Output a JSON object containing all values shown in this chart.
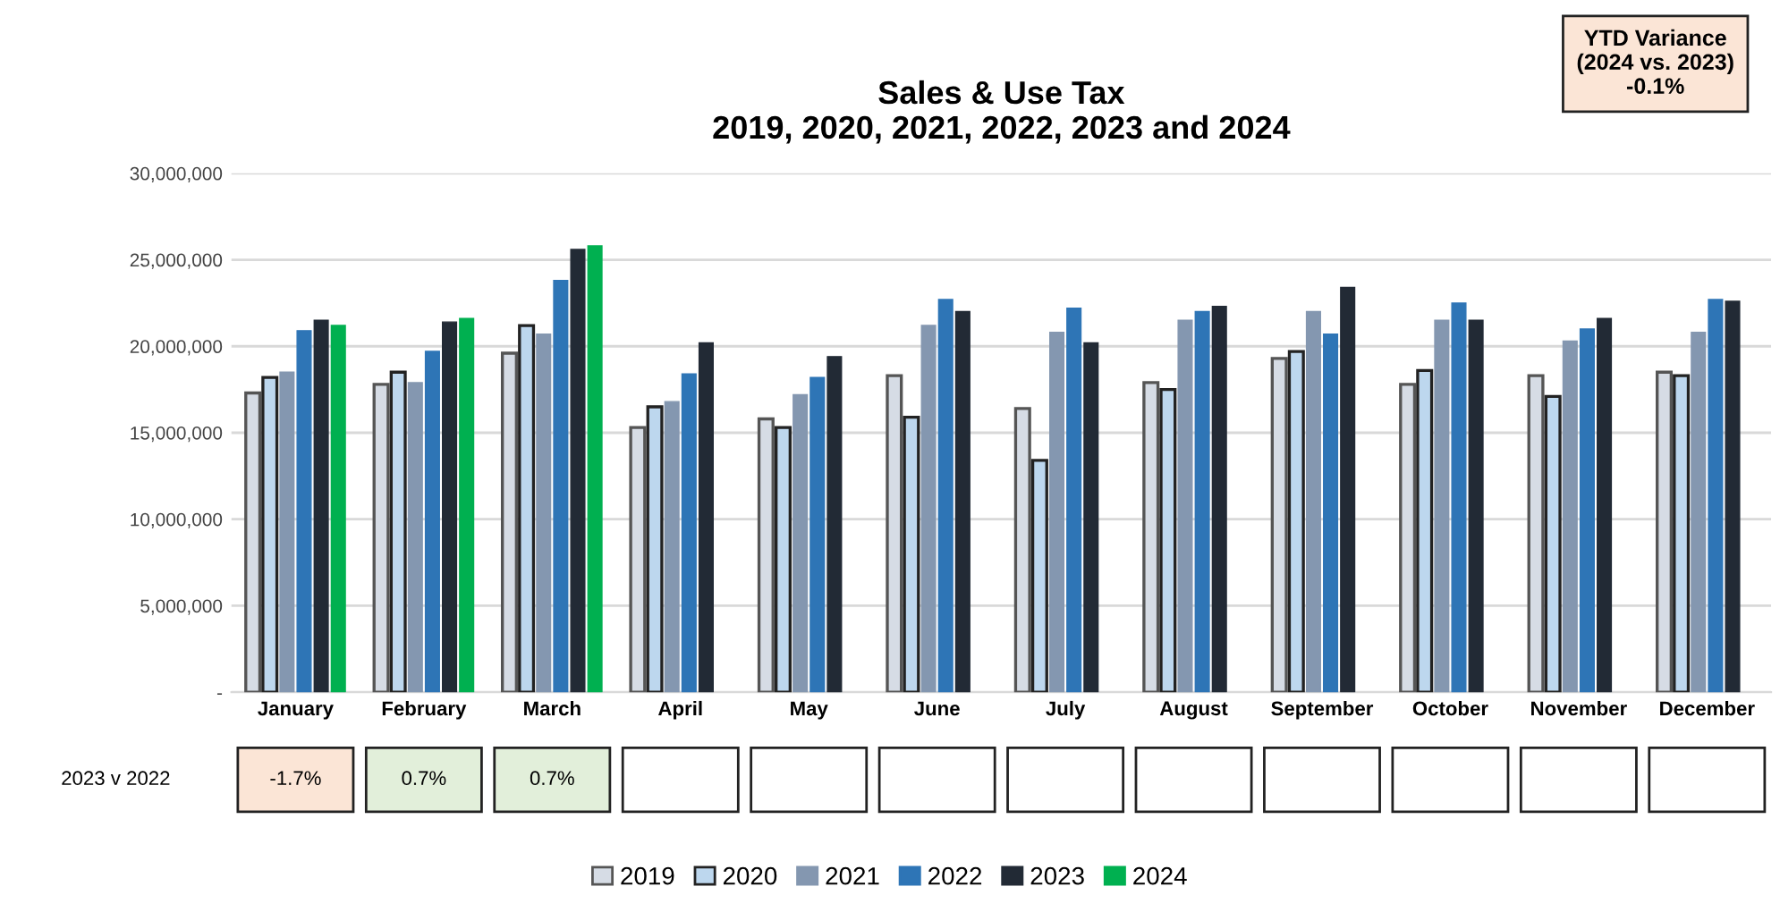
{
  "chart_data": {
    "type": "bar",
    "title": "Sales & Use Tax\n2019, 2020, 2021, 2022, 2023 and 2024",
    "categories": [
      "January",
      "February",
      "March",
      "April",
      "May",
      "June",
      "July",
      "August",
      "September",
      "October",
      "November",
      "December"
    ],
    "series": [
      {
        "name": "2019",
        "color": "#d6dce5",
        "values": [
          17300000,
          17800000,
          19600000,
          15300000,
          15800000,
          18300000,
          16400000,
          17900000,
          19300000,
          17800000,
          18300000,
          18500000
        ]
      },
      {
        "name": "2020",
        "color": "#bdd7ee",
        "values": [
          18200000,
          18500000,
          21200000,
          16500000,
          15300000,
          15900000,
          13400000,
          17500000,
          19700000,
          18600000,
          17100000,
          18300000
        ]
      },
      {
        "name": "2021",
        "color": "#8497b0",
        "values": [
          18500000,
          17900000,
          20700000,
          16800000,
          17200000,
          21200000,
          20800000,
          21500000,
          22000000,
          21500000,
          20300000,
          20800000
        ]
      },
      {
        "name": "2022",
        "color": "#2e75b6",
        "values": [
          20900000,
          19700000,
          23800000,
          18400000,
          18200000,
          22700000,
          22200000,
          22000000,
          20700000,
          22500000,
          21000000,
          22700000
        ]
      },
      {
        "name": "2023",
        "color": "#222a35",
        "values": [
          21500000,
          21400000,
          25600000,
          20200000,
          19400000,
          22000000,
          20200000,
          22300000,
          23400000,
          21500000,
          21600000,
          22600000
        ]
      },
      {
        "name": "2024",
        "color": "#00b050",
        "values": [
          21200000,
          21600000,
          25800000,
          null,
          null,
          null,
          null,
          null,
          null,
          null,
          null,
          null
        ]
      }
    ],
    "ylim": [
      0,
      30000000
    ],
    "yticks": [
      {
        "value": 0,
        "label": "-"
      },
      {
        "value": 5000000,
        "label": "5,000,000"
      },
      {
        "value": 10000000,
        "label": "10,000,000"
      },
      {
        "value": 15000000,
        "label": "15,000,000"
      },
      {
        "value": 20000000,
        "label": "20,000,000"
      },
      {
        "value": 25000000,
        "label": "25,000,000"
      },
      {
        "value": 30000000,
        "label": "30,000,000"
      }
    ],
    "grid": "y",
    "legend": "bottom",
    "annotations": [
      "YTD Variance\n(2024 vs. 2023)\n-0.1%",
      "2023 v 2022",
      "-1.7%",
      "0.7%",
      "0.7%"
    ]
  }
}
